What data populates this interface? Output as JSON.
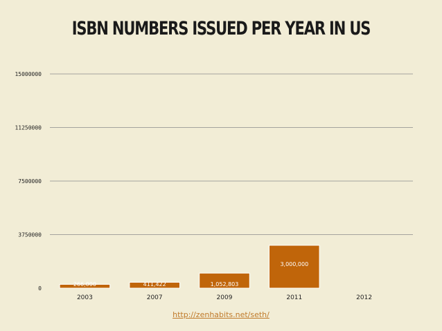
{
  "title": "ISBN NUMBERS ISSUED PER YEAR IN US",
  "source_link": "http://zenhabits.net/seth/",
  "colors": {
    "background": "#f2edd6",
    "bar": "#c0650a",
    "bar_stroke": "#ffffff",
    "gridline": "#8a8a8a",
    "link": "#c07a2a"
  },
  "chart_data": {
    "type": "bar",
    "categories": [
      "2003",
      "2007",
      "2009",
      "2011",
      "2012"
    ],
    "values": [
      266000,
      411422,
      1052803,
      3000000,
      null
    ],
    "data_labels": [
      "266,000",
      "411,422",
      "1,052,803",
      "3,000,000",
      ""
    ],
    "ytick_labels": [
      "0",
      "3750000",
      "7500000",
      "11250000",
      "15000000"
    ],
    "ylim": [
      0,
      15000000
    ],
    "grid": true
  }
}
